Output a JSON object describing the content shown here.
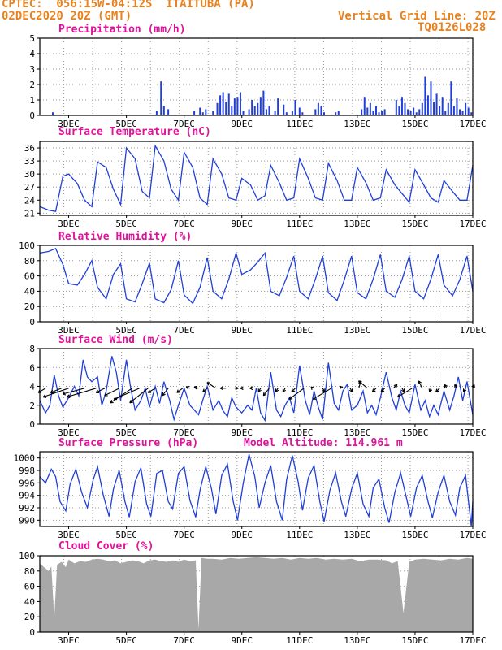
{
  "header": {
    "line1_left": "CPTEC:  056:15W-04:12S  ITAITUBA (PA)",
    "line2_left": "02DEC2020 20Z (GMT)",
    "line2_right": "Vertical Grid Line: 20Z",
    "line3_right": "TQ0126L028"
  },
  "colors": {
    "header": "#e8821e",
    "title": "#e0129a",
    "series": "#1f3fd8",
    "bars": "#1f3fd8",
    "cloud": "#a8a8a8"
  },
  "x_axis": {
    "range_days": [
      2.0,
      17.0
    ],
    "tick_labels": [
      "3DEC",
      "5DEC",
      "7DEC",
      "9DEC",
      "11DEC",
      "13DEC",
      "15DEC",
      "17DEC"
    ],
    "tick_days": [
      3,
      5,
      7,
      9,
      11,
      13,
      15,
      17
    ]
  },
  "panels": {
    "precip": {
      "title": "Precipitation (mm/h)"
    },
    "temp": {
      "title": "Surface Temperature (nC)"
    },
    "rh": {
      "title": "Relative Humidity (%)"
    },
    "wind": {
      "title": "Surface Wind (m/s)"
    },
    "pres": {
      "title": "Surface Pressure (hPa)",
      "extra": "Model Altitude: 114.961 m"
    },
    "cloud": {
      "title": "Cloud Cover (%)"
    }
  },
  "chart_data": [
    {
      "type": "bar",
      "id": "precip",
      "title": "Precipitation (mm/h)",
      "ylim": [
        0,
        5
      ],
      "yticks": [
        0,
        1,
        2,
        3,
        4,
        5
      ],
      "x": [
        2.45,
        6.05,
        6.2,
        6.3,
        6.45,
        7.35,
        7.55,
        7.65,
        7.75,
        8.0,
        8.15,
        8.25,
        8.35,
        8.45,
        8.55,
        8.65,
        8.75,
        8.85,
        8.95,
        9.05,
        9.25,
        9.35,
        9.45,
        9.55,
        9.65,
        9.75,
        9.85,
        9.95,
        10.15,
        10.25,
        10.45,
        10.55,
        10.75,
        10.85,
        11.0,
        11.1,
        11.55,
        11.65,
        11.75,
        11.85,
        12.25,
        12.35,
        13.15,
        13.25,
        13.35,
        13.45,
        13.55,
        13.65,
        13.75,
        13.85,
        13.95,
        14.35,
        14.45,
        14.55,
        14.65,
        14.75,
        14.85,
        14.95,
        15.05,
        15.15,
        15.25,
        15.35,
        15.45,
        15.55,
        15.65,
        15.75,
        15.85,
        15.95,
        16.05,
        16.15,
        16.25,
        16.35,
        16.45,
        16.55,
        16.65,
        16.75,
        16.85,
        16.95
      ],
      "values": [
        0.2,
        0.3,
        2.2,
        0.6,
        0.4,
        0.3,
        0.5,
        0.2,
        0.4,
        0.3,
        0.8,
        1.3,
        1.5,
        0.9,
        1.4,
        0.6,
        1.1,
        1.2,
        1.5,
        0.3,
        0.4,
        1.0,
        0.6,
        0.8,
        1.2,
        1.6,
        0.4,
        0.6,
        0.3,
        1.1,
        0.7,
        0.2,
        0.3,
        1.0,
        0.5,
        0.2,
        0.4,
        0.8,
        0.6,
        0.2,
        0.2,
        0.3,
        0.4,
        1.2,
        0.5,
        0.8,
        0.3,
        0.6,
        0.2,
        0.3,
        0.4,
        1.0,
        0.6,
        1.2,
        0.8,
        0.4,
        0.3,
        0.5,
        0.2,
        0.4,
        0.8,
        2.5,
        1.3,
        2.2,
        0.9,
        1.4,
        0.6,
        1.2,
        0.3,
        0.8,
        2.2,
        0.6,
        1.1,
        0.4,
        0.3,
        0.8,
        0.5,
        0.2
      ]
    },
    {
      "type": "line",
      "id": "temp",
      "title": "Surface Temperature (nC)",
      "ylim": [
        20.5,
        37.5
      ],
      "yticks": [
        21,
        24,
        27,
        30,
        33,
        36
      ],
      "x": [
        2.0,
        2.3,
        2.55,
        2.8,
        3.0,
        3.3,
        3.55,
        3.8,
        4.0,
        4.3,
        4.55,
        4.8,
        5.0,
        5.3,
        5.55,
        5.8,
        6.0,
        6.3,
        6.55,
        6.8,
        7.0,
        7.3,
        7.55,
        7.8,
        8.0,
        8.3,
        8.55,
        8.8,
        9.0,
        9.3,
        9.55,
        9.8,
        10.0,
        10.3,
        10.55,
        10.8,
        11.0,
        11.3,
        11.55,
        11.8,
        12.0,
        12.3,
        12.55,
        12.8,
        13.0,
        13.3,
        13.55,
        13.8,
        14.0,
        14.3,
        14.55,
        14.8,
        15.0,
        15.3,
        15.55,
        15.8,
        16.0,
        16.3,
        16.55,
        16.8,
        17.0
      ],
      "values": [
        22.5,
        21.7,
        21.4,
        29.5,
        30.0,
        27.8,
        24.0,
        22.5,
        32.8,
        31.5,
        26.5,
        23.0,
        36.0,
        33.5,
        26.0,
        24.5,
        36.5,
        33.0,
        26.5,
        24.0,
        35.0,
        31.5,
        24.5,
        23.0,
        33.5,
        30.0,
        24.5,
        24.0,
        29.0,
        27.5,
        24.0,
        25.0,
        32.0,
        28.0,
        24.0,
        24.5,
        33.5,
        29.0,
        24.5,
        24.0,
        32.5,
        28.5,
        24.0,
        24.0,
        31.5,
        28.0,
        24.0,
        24.5,
        31.0,
        27.5,
        25.5,
        23.5,
        31.0,
        27.5,
        24.5,
        23.5,
        28.5,
        26.0,
        24.0,
        24.0,
        32.0
      ]
    },
    {
      "type": "line",
      "id": "rh",
      "title": "Relative Humidity (%)",
      "ylim": [
        0,
        100
      ],
      "yticks": [
        0,
        20,
        40,
        60,
        80,
        100
      ],
      "x": [
        2.0,
        2.3,
        2.55,
        2.8,
        3.0,
        3.3,
        3.55,
        3.8,
        4.0,
        4.3,
        4.55,
        4.8,
        5.0,
        5.3,
        5.55,
        5.8,
        6.0,
        6.3,
        6.55,
        6.8,
        7.0,
        7.3,
        7.55,
        7.8,
        8.0,
        8.3,
        8.55,
        8.8,
        9.0,
        9.3,
        9.55,
        9.8,
        10.0,
        10.3,
        10.55,
        10.8,
        11.0,
        11.3,
        11.55,
        11.8,
        12.0,
        12.3,
        12.55,
        12.8,
        13.0,
        13.3,
        13.55,
        13.8,
        14.0,
        14.3,
        14.55,
        14.8,
        15.0,
        15.3,
        15.55,
        15.8,
        16.0,
        16.3,
        16.55,
        16.8,
        17.0
      ],
      "values": [
        90,
        92,
        96,
        75,
        50,
        48,
        62,
        80,
        45,
        30,
        62,
        76,
        30,
        26,
        50,
        77,
        30,
        25,
        42,
        80,
        35,
        24,
        45,
        84,
        40,
        30,
        56,
        90,
        62,
        68,
        78,
        90,
        40,
        34,
        58,
        86,
        40,
        30,
        56,
        86,
        38,
        28,
        55,
        86,
        38,
        30,
        56,
        88,
        40,
        32,
        55,
        86,
        40,
        30,
        56,
        88,
        48,
        34,
        55,
        86,
        40
      ]
    },
    {
      "type": "line",
      "id": "wind",
      "title": "Surface Wind (m/s)",
      "ylim": [
        0,
        8
      ],
      "yticks": [
        0,
        2,
        4,
        6,
        8
      ],
      "x": [
        2.0,
        2.2,
        2.35,
        2.5,
        2.65,
        2.8,
        3.0,
        3.2,
        3.35,
        3.5,
        3.65,
        3.8,
        4.0,
        4.15,
        4.3,
        4.5,
        4.65,
        4.8,
        5.0,
        5.15,
        5.3,
        5.5,
        5.65,
        5.8,
        6.0,
        6.15,
        6.3,
        6.5,
        6.65,
        6.8,
        7.0,
        7.2,
        7.35,
        7.5,
        7.65,
        7.8,
        8.0,
        8.2,
        8.35,
        8.5,
        8.65,
        8.8,
        9.0,
        9.2,
        9.35,
        9.5,
        9.65,
        9.8,
        10.0,
        10.2,
        10.35,
        10.5,
        10.65,
        10.8,
        11.0,
        11.2,
        11.35,
        11.5,
        11.65,
        11.8,
        12.0,
        12.2,
        12.35,
        12.5,
        12.65,
        12.8,
        13.0,
        13.2,
        13.35,
        13.5,
        13.65,
        13.8,
        14.0,
        14.2,
        14.35,
        14.5,
        14.65,
        14.8,
        15.0,
        15.2,
        15.35,
        15.5,
        15.65,
        15.8,
        16.0,
        16.2,
        16.35,
        16.5,
        16.65,
        16.8,
        17.0
      ],
      "values": [
        2.5,
        1.2,
        2.0,
        5.2,
        3.0,
        1.8,
        2.8,
        4.0,
        3.0,
        6.8,
        5.0,
        4.5,
        5.0,
        2.0,
        3.5,
        7.2,
        5.5,
        2.5,
        6.8,
        3.8,
        1.5,
        2.5,
        3.8,
        1.8,
        4.0,
        2.2,
        4.5,
        2.5,
        0.5,
        2.0,
        3.8,
        2.0,
        1.5,
        1.0,
        2.6,
        4.0,
        1.5,
        2.5,
        1.4,
        0.8,
        2.8,
        1.8,
        1.2,
        2.0,
        1.5,
        3.8,
        1.2,
        0.4,
        5.5,
        1.5,
        0.8,
        2.0,
        2.8,
        1.2,
        6.2,
        2.5,
        1.0,
        3.5,
        1.8,
        0.5,
        6.5,
        2.2,
        1.5,
        3.5,
        4.2,
        1.5,
        2.0,
        3.5,
        1.2,
        2.0,
        1.0,
        2.8,
        5.5,
        2.8,
        1.5,
        3.5,
        2.0,
        1.2,
        4.2,
        1.5,
        2.5,
        0.8,
        2.0,
        1.0,
        3.5,
        1.5,
        3.0,
        5.0,
        2.5,
        4.5,
        1.0
      ],
      "vectors": {
        "x": [
          2.2,
          2.75,
          3.0,
          3.55,
          3.95,
          4.25,
          4.75,
          5.2,
          5.45,
          5.75,
          6.0,
          6.45,
          6.95,
          7.2,
          7.5,
          7.8,
          8.1,
          8.45,
          8.75,
          9.05,
          9.35,
          9.65,
          9.95,
          10.25,
          10.5,
          10.85,
          11.15,
          11.45,
          11.8,
          12.1,
          12.45,
          12.75,
          13.05,
          13.35,
          13.65,
          13.95,
          14.25,
          14.55,
          14.9,
          15.25,
          15.55,
          15.85,
          16.1,
          16.45,
          16.75,
          17.0
        ],
        "u": [
          -1.0,
          -1.5,
          -3.5,
          -3.0,
          -4.0,
          -1.2,
          -2.0,
          -3.0,
          -3.5,
          -2.5,
          -1.0,
          -0.8,
          -0.8,
          -0.5,
          -0.6,
          -0.6,
          -1.2,
          -0.8,
          0.5,
          -0.4,
          -0.3,
          -0.3,
          -0.8,
          -0.3,
          -0.3,
          -0.5,
          -2.0,
          -0.2,
          0.3,
          -2.5,
          -0.2,
          0.3,
          0.3,
          -1.2,
          -0.5,
          -0.5,
          0.5,
          0.3,
          -2.0,
          -0.5,
          -0.2,
          -0.5,
          -0.3,
          -0.3,
          -0.3,
          0.2
        ],
        "v": [
          -0.6,
          -0.6,
          -1.2,
          -0.8,
          -1.2,
          -0.6,
          -1.0,
          -2.0,
          -1.5,
          -2.0,
          -0.6,
          -1.0,
          -0.6,
          0.2,
          0.2,
          -0.5,
          0.8,
          0.0,
          0.0,
          0.0,
          0.0,
          -0.5,
          -1.0,
          -0.5,
          -0.5,
          -0.5,
          -1.5,
          0.2,
          -0.5,
          -1.5,
          0.3,
          -0.5,
          1.0,
          1.0,
          -0.5,
          -0.5,
          0.5,
          -0.5,
          -1.2,
          1.0,
          -0.5,
          -0.5,
          0.5,
          0.5,
          -0.5,
          0.5
        ]
      }
    },
    {
      "type": "line",
      "id": "pres",
      "title": "Surface Pressure (hPa)",
      "ylim": [
        989,
        1001
      ],
      "yticks": [
        990,
        992,
        994,
        996,
        998,
        1000
      ],
      "x": [
        2.0,
        2.2,
        2.4,
        2.55,
        2.7,
        2.9,
        3.05,
        3.25,
        3.45,
        3.65,
        3.85,
        4.0,
        4.2,
        4.4,
        4.55,
        4.75,
        4.95,
        5.1,
        5.3,
        5.5,
        5.7,
        5.85,
        6.05,
        6.25,
        6.45,
        6.6,
        6.8,
        7.0,
        7.2,
        7.4,
        7.55,
        7.75,
        7.95,
        8.1,
        8.3,
        8.5,
        8.7,
        8.85,
        9.05,
        9.25,
        9.45,
        9.6,
        9.8,
        10.0,
        10.2,
        10.4,
        10.55,
        10.75,
        10.95,
        11.1,
        11.3,
        11.5,
        11.7,
        11.85,
        12.05,
        12.25,
        12.45,
        12.6,
        12.8,
        13.0,
        13.2,
        13.4,
        13.55,
        13.75,
        13.95,
        14.1,
        14.3,
        14.5,
        14.7,
        14.85,
        15.05,
        15.25,
        15.45,
        15.6,
        15.8,
        16.0,
        16.2,
        16.4,
        16.55,
        16.75,
        16.95,
        17.0
      ],
      "values": [
        997.0,
        996.0,
        998.2,
        997.0,
        993.0,
        991.5,
        995.8,
        998.2,
        994.5,
        992.0,
        996.5,
        998.6,
        994.0,
        990.6,
        995.0,
        998.0,
        993.0,
        990.5,
        996.2,
        998.4,
        992.6,
        990.6,
        997.5,
        998.0,
        993.0,
        991.8,
        997.5,
        998.6,
        993.2,
        990.5,
        994.8,
        998.6,
        995.0,
        991.0,
        997.2,
        999.0,
        993.0,
        990.0,
        996.0,
        1000.6,
        997.0,
        992.0,
        996.0,
        998.8,
        993.0,
        990.0,
        996.5,
        1000.4,
        996.2,
        991.6,
        996.8,
        998.8,
        993.0,
        989.8,
        994.8,
        997.6,
        993.0,
        990.6,
        995.0,
        997.6,
        992.6,
        990.6,
        995.2,
        996.6,
        992.0,
        989.6,
        994.5,
        997.6,
        993.6,
        990.6,
        995.2,
        997.2,
        993.0,
        990.4,
        994.5,
        997.2,
        993.0,
        990.8,
        995.2,
        997.2,
        989.0,
        993.0
      ]
    },
    {
      "type": "area",
      "id": "cloud",
      "title": "Cloud Cover (%)",
      "ylim": [
        0,
        100
      ],
      "yticks": [
        0,
        20,
        40,
        60,
        80,
        100
      ],
      "x": [
        2.0,
        2.15,
        2.3,
        2.4,
        2.5,
        2.6,
        2.75,
        2.9,
        3.0,
        3.2,
        3.4,
        3.6,
        3.8,
        4.0,
        4.2,
        4.4,
        4.6,
        4.8,
        5.0,
        5.2,
        5.4,
        5.6,
        5.8,
        6.0,
        6.2,
        6.4,
        6.6,
        6.8,
        7.0,
        7.2,
        7.4,
        7.5,
        7.6,
        7.8,
        8.0,
        8.3,
        8.6,
        8.9,
        9.2,
        9.5,
        9.8,
        10.1,
        10.4,
        10.7,
        11.0,
        11.3,
        11.6,
        11.9,
        12.2,
        12.5,
        12.8,
        13.1,
        13.4,
        13.7,
        14.0,
        14.2,
        14.4,
        14.6,
        14.8,
        15.0,
        15.3,
        15.6,
        15.9,
        16.2,
        16.5,
        16.8,
        17.0
      ],
      "values": [
        90,
        85,
        80,
        86,
        18,
        88,
        92,
        85,
        95,
        90,
        93,
        92,
        95,
        96,
        95,
        93,
        94,
        90,
        92,
        94,
        93,
        90,
        94,
        95,
        93,
        92,
        94,
        92,
        95,
        93,
        94,
        4,
        97,
        96,
        96,
        95,
        97,
        96,
        97,
        98,
        97,
        96,
        97,
        95,
        97,
        96,
        97,
        95,
        96,
        95,
        96,
        93,
        95,
        95,
        94,
        90,
        93,
        25,
        92,
        95,
        96,
        95,
        94,
        96,
        95,
        97,
        96
      ]
    }
  ]
}
